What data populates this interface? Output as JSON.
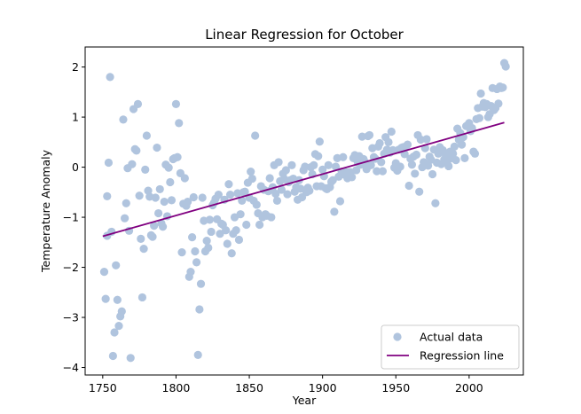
{
  "chart_data": {
    "type": "scatter",
    "title": "Linear Regression for October",
    "xlabel": "Year",
    "ylabel": "Temperature Anomaly",
    "xlim": [
      1738,
      2037
    ],
    "ylim": [
      -4.15,
      2.4
    ],
    "xticks": [
      1750,
      1800,
      1850,
      1900,
      1950,
      2000
    ],
    "yticks": [
      -4,
      -3,
      -2,
      -1,
      0,
      1,
      2
    ],
    "grid": false,
    "legend_position": "lower right",
    "series": [
      {
        "name": "Actual data",
        "kind": "scatter",
        "color": "#b0c4de",
        "points": [
          [
            1751,
            -2.09
          ],
          [
            1752,
            -2.63
          ],
          [
            1753,
            -1.37
          ],
          [
            1753,
            -0.58
          ],
          [
            1754,
            0.09
          ],
          [
            1755,
            1.8
          ],
          [
            1756,
            -1.29
          ],
          [
            1757,
            -3.77
          ],
          [
            1758,
            -3.3
          ],
          [
            1759,
            -1.96
          ],
          [
            1760,
            -2.65
          ],
          [
            1761,
            -3.17
          ],
          [
            1762,
            -2.98
          ],
          [
            1763,
            -2.88
          ],
          [
            1764,
            0.95
          ],
          [
            1765,
            -1.02
          ],
          [
            1766,
            -0.72
          ],
          [
            1767,
            -0.02
          ],
          [
            1768,
            -1.27
          ],
          [
            1769,
            -3.81
          ],
          [
            1770,
            0.06
          ],
          [
            1771,
            1.16
          ],
          [
            1772,
            0.36
          ],
          [
            1773,
            0.33
          ],
          [
            1774,
            1.26
          ],
          [
            1775,
            -0.57
          ],
          [
            1776,
            -1.43
          ],
          [
            1777,
            -2.6
          ],
          [
            1778,
            -1.63
          ],
          [
            1779,
            -0.05
          ],
          [
            1780,
            0.63
          ],
          [
            1781,
            -0.47
          ],
          [
            1782,
            -0.59
          ],
          [
            1783,
            -1.36
          ],
          [
            1784,
            -1.39
          ],
          [
            1785,
            -1.17
          ],
          [
            1786,
            -0.61
          ],
          [
            1787,
            0.39
          ],
          [
            1788,
            -0.92
          ],
          [
            1789,
            -0.44
          ],
          [
            1790,
            -1.12
          ],
          [
            1791,
            -1.19
          ],
          [
            1792,
            -0.69
          ],
          [
            1793,
            0.05
          ],
          [
            1794,
            -0.98
          ],
          [
            1795,
            -0.01
          ],
          [
            1796,
            -0.3
          ],
          [
            1797,
            -0.66
          ],
          [
            1798,
            0.16
          ],
          [
            1799,
            0.18
          ],
          [
            1800,
            1.26
          ],
          [
            1801,
            0.2
          ],
          [
            1802,
            0.88
          ],
          [
            1803,
            -0.12
          ],
          [
            1804,
            -1.7
          ],
          [
            1805,
            -0.73
          ],
          [
            1806,
            -0.22
          ],
          [
            1807,
            -0.77
          ],
          [
            1808,
            -0.69
          ],
          [
            1809,
            -2.19
          ],
          [
            1810,
            -2.09
          ],
          [
            1811,
            -1.4
          ],
          [
            1812,
            -0.6
          ],
          [
            1813,
            -1.68
          ],
          [
            1814,
            -1.9
          ],
          [
            1815,
            -3.75
          ],
          [
            1816,
            -2.84
          ],
          [
            1817,
            -2.33
          ],
          [
            1818,
            -0.61
          ],
          [
            1819,
            -1.07
          ],
          [
            1820,
            -1.68
          ],
          [
            1821,
            -1.47
          ],
          [
            1822,
            -1.61
          ],
          [
            1823,
            -1.05
          ],
          [
            1824,
            -1.29
          ],
          [
            1825,
            -0.76
          ],
          [
            1826,
            -0.71
          ],
          [
            1827,
            -0.63
          ],
          [
            1828,
            -1.04
          ],
          [
            1829,
            -0.55
          ],
          [
            1830,
            -1.33
          ],
          [
            1831,
            -1.13
          ],
          [
            1832,
            -1.15
          ],
          [
            1833,
            -0.65
          ],
          [
            1834,
            -1.26
          ],
          [
            1835,
            -1.53
          ],
          [
            1836,
            -0.34
          ],
          [
            1837,
            -0.55
          ],
          [
            1838,
            -1.72
          ],
          [
            1839,
            -1.33
          ],
          [
            1840,
            -1.0
          ],
          [
            1841,
            -1.26
          ],
          [
            1842,
            -0.52
          ],
          [
            1843,
            -1.45
          ],
          [
            1844,
            -0.94
          ],
          [
            1845,
            -0.67
          ],
          [
            1846,
            -0.5
          ],
          [
            1847,
            -0.49
          ],
          [
            1848,
            -1.15
          ],
          [
            1849,
            -0.31
          ],
          [
            1850,
            -0.61
          ],
          [
            1851,
            -0.09
          ],
          [
            1852,
            -0.23
          ],
          [
            1853,
            -0.67
          ],
          [
            1854,
            0.63
          ],
          [
            1855,
            -0.75
          ],
          [
            1856,
            -0.92
          ],
          [
            1857,
            -1.15
          ],
          [
            1858,
            -0.38
          ],
          [
            1859,
            -1.0
          ],
          [
            1860,
            -0.45
          ],
          [
            1861,
            -0.94
          ],
          [
            1862,
            -0.97
          ],
          [
            1863,
            -0.48
          ],
          [
            1864,
            -0.22
          ],
          [
            1865,
            -1.0
          ],
          [
            1866,
            -0.4
          ],
          [
            1867,
            0.04
          ],
          [
            1868,
            -0.53
          ],
          [
            1869,
            -0.67
          ],
          [
            1870,
            0.1
          ],
          [
            1871,
            -0.28
          ],
          [
            1872,
            -0.45
          ],
          [
            1873,
            -0.13
          ],
          [
            1874,
            -0.24
          ],
          [
            1875,
            -0.06
          ],
          [
            1876,
            -0.54
          ],
          [
            1877,
            -0.3
          ],
          [
            1878,
            -0.26
          ],
          [
            1879,
            0.04
          ],
          [
            1880,
            -0.23
          ],
          [
            1881,
            -0.49
          ],
          [
            1882,
            -0.4
          ],
          [
            1883,
            -0.65
          ],
          [
            1884,
            -0.26
          ],
          [
            1885,
            -0.43
          ],
          [
            1886,
            -0.6
          ],
          [
            1887,
            -0.06
          ],
          [
            1888,
            0.01
          ],
          [
            1889,
            -0.5
          ],
          [
            1890,
            -0.41
          ],
          [
            1891,
            -0.47
          ],
          [
            1892,
            0.0
          ],
          [
            1893,
            -0.14
          ],
          [
            1894,
            0.04
          ],
          [
            1895,
            0.26
          ],
          [
            1896,
            -0.38
          ],
          [
            1897,
            0.22
          ],
          [
            1898,
            0.51
          ],
          [
            1899,
            -0.38
          ],
          [
            1900,
            -0.05
          ],
          [
            1901,
            -0.18
          ],
          [
            1902,
            -0.42
          ],
          [
            1903,
            -0.44
          ],
          [
            1904,
            0.04
          ],
          [
            1905,
            -0.4
          ],
          [
            1906,
            -0.29
          ],
          [
            1907,
            -0.26
          ],
          [
            1908,
            -0.89
          ],
          [
            1909,
            0.01
          ],
          [
            1910,
            0.18
          ],
          [
            1911,
            -0.19
          ],
          [
            1912,
            -0.68
          ],
          [
            1913,
            -0.09
          ],
          [
            1914,
            0.2
          ],
          [
            1915,
            -0.15
          ],
          [
            1916,
            -0.1
          ],
          [
            1917,
            -0.22
          ],
          [
            1918,
            -0.1
          ],
          [
            1919,
            -0.1
          ],
          [
            1920,
            -0.2
          ],
          [
            1921,
            0.18
          ],
          [
            1922,
            0.24
          ],
          [
            1923,
            -0.06
          ],
          [
            1924,
            0.1
          ],
          [
            1925,
            0.22
          ],
          [
            1926,
            0.05
          ],
          [
            1927,
            0.61
          ],
          [
            1928,
            0.16
          ],
          [
            1929,
            0.1
          ],
          [
            1930,
            -0.04
          ],
          [
            1931,
            0.62
          ],
          [
            1932,
            0.64
          ],
          [
            1933,
            0.04
          ],
          [
            1934,
            0.38
          ],
          [
            1935,
            0.2
          ],
          [
            1936,
            0.17
          ],
          [
            1937,
            -0.08
          ],
          [
            1938,
            0.41
          ],
          [
            1939,
            0.48
          ],
          [
            1940,
            0.1
          ],
          [
            1941,
            -0.08
          ],
          [
            1942,
            0.27
          ],
          [
            1943,
            0.6
          ],
          [
            1944,
            0.35
          ],
          [
            1945,
            0.5
          ],
          [
            1946,
            0.29
          ],
          [
            1947,
            0.71
          ],
          [
            1948,
            0.34
          ],
          [
            1949,
            -0.01
          ],
          [
            1950,
            0.08
          ],
          [
            1951,
            -0.07
          ],
          [
            1952,
            0.35
          ],
          [
            1953,
            0.01
          ],
          [
            1954,
            0.39
          ],
          [
            1955,
            0.4
          ],
          [
            1956,
            0.26
          ],
          [
            1957,
            0.42
          ],
          [
            1958,
            0.45
          ],
          [
            1959,
            -0.37
          ],
          [
            1960,
            0.17
          ],
          [
            1961,
            0.05
          ],
          [
            1962,
            0.21
          ],
          [
            1963,
            -0.13
          ],
          [
            1964,
            0.25
          ],
          [
            1965,
            0.64
          ],
          [
            1966,
            -0.49
          ],
          [
            1967,
            0.55
          ],
          [
            1968,
            0.0
          ],
          [
            1969,
            0.1
          ],
          [
            1970,
            0.38
          ],
          [
            1971,
            0.56
          ],
          [
            1972,
            0.03
          ],
          [
            1973,
            0.21
          ],
          [
            1974,
            0.15
          ],
          [
            1975,
            -0.14
          ],
          [
            1976,
            0.35
          ],
          [
            1977,
            -0.72
          ],
          [
            1978,
            0.09
          ],
          [
            1979,
            0.27
          ],
          [
            1980,
            0.4
          ],
          [
            1981,
            0.06
          ],
          [
            1982,
            0.34
          ],
          [
            1983,
            0.15
          ],
          [
            1984,
            0.25
          ],
          [
            1985,
            0.09
          ],
          [
            1986,
            0.02
          ],
          [
            1987,
            0.31
          ],
          [
            1988,
            0.18
          ],
          [
            1989,
            0.27
          ],
          [
            1990,
            0.41
          ],
          [
            1991,
            0.14
          ],
          [
            1992,
            0.77
          ],
          [
            1993,
            0.55
          ],
          [
            1994,
            0.68
          ],
          [
            1995,
            0.45
          ],
          [
            1996,
            0.6
          ],
          [
            1997,
            0.18
          ],
          [
            1998,
            0.82
          ],
          [
            1999,
            0.84
          ],
          [
            2000,
            0.88
          ],
          [
            2001,
            0.72
          ],
          [
            2002,
            0.78
          ],
          [
            2003,
            0.31
          ],
          [
            2004,
            0.27
          ],
          [
            2005,
            0.96
          ],
          [
            2006,
            1.18
          ],
          [
            2007,
            0.98
          ],
          [
            2008,
            1.47
          ],
          [
            2009,
            1.21
          ],
          [
            2010,
            1.28
          ],
          [
            2011,
            1.2
          ],
          [
            2012,
            1.26
          ],
          [
            2013,
            1.0
          ],
          [
            2014,
            1.06
          ],
          [
            2015,
            1.22
          ],
          [
            2016,
            1.58
          ],
          [
            2017,
            1.14
          ],
          [
            2018,
            1.18
          ],
          [
            2019,
            1.56
          ],
          [
            2020,
            1.27
          ],
          [
            2021,
            1.61
          ],
          [
            2022,
            1.58
          ],
          [
            2023,
            1.59
          ],
          [
            2024,
            2.08
          ],
          [
            2025,
            2.01
          ]
        ]
      },
      {
        "name": "Regression line",
        "kind": "line",
        "color": "#800080",
        "points": [
          [
            1750,
            -1.38
          ],
          [
            2024,
            0.89
          ]
        ]
      }
    ]
  }
}
